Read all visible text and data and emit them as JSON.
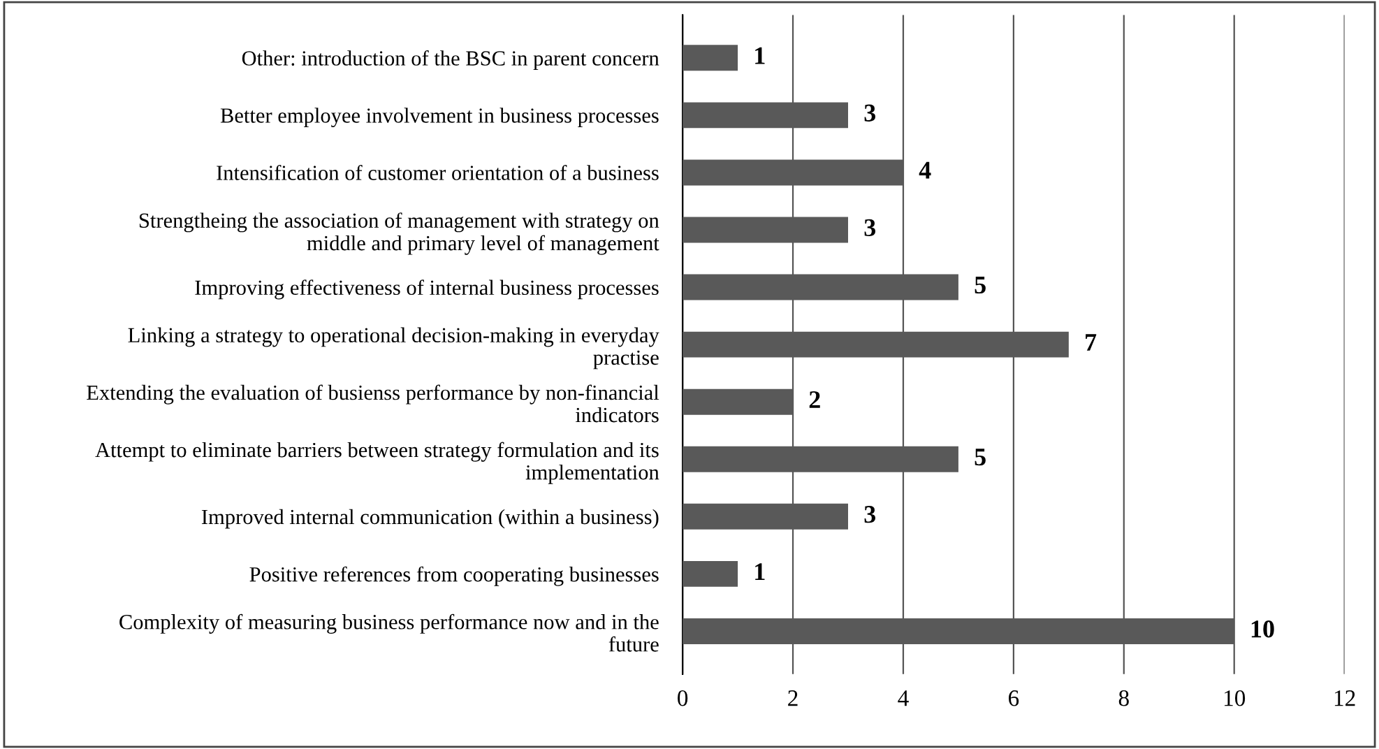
{
  "chart_data": {
    "type": "bar",
    "orientation": "horizontal",
    "categories": [
      "Other: introduction of the BSC in parent concern",
      "Better employee involvement in business processes",
      "Intensification of customer orientation of a business",
      "Strengtheing the association of management with strategy on\nmiddle and primary level of management",
      "Improving effectiveness of internal business processes",
      "Linking a strategy to operational decision-making in everyday\npractise",
      "Extending the evaluation of busienss performance by non-financial\nindicators",
      "Attempt to eliminate barriers between strategy formulation and its\nimplementation",
      "Improved internal communication (within a business)",
      "Positive references from cooperating businesses",
      "Complexity of measuring business performance now and in the\nfuture"
    ],
    "values": [
      1,
      3,
      4,
      3,
      5,
      7,
      2,
      5,
      3,
      1,
      10
    ],
    "color": "#595959",
    "xlim": [
      0,
      12
    ],
    "xticks": [
      0,
      2,
      4,
      6,
      8,
      10,
      12
    ],
    "grid": "x",
    "data_labels": true
  }
}
